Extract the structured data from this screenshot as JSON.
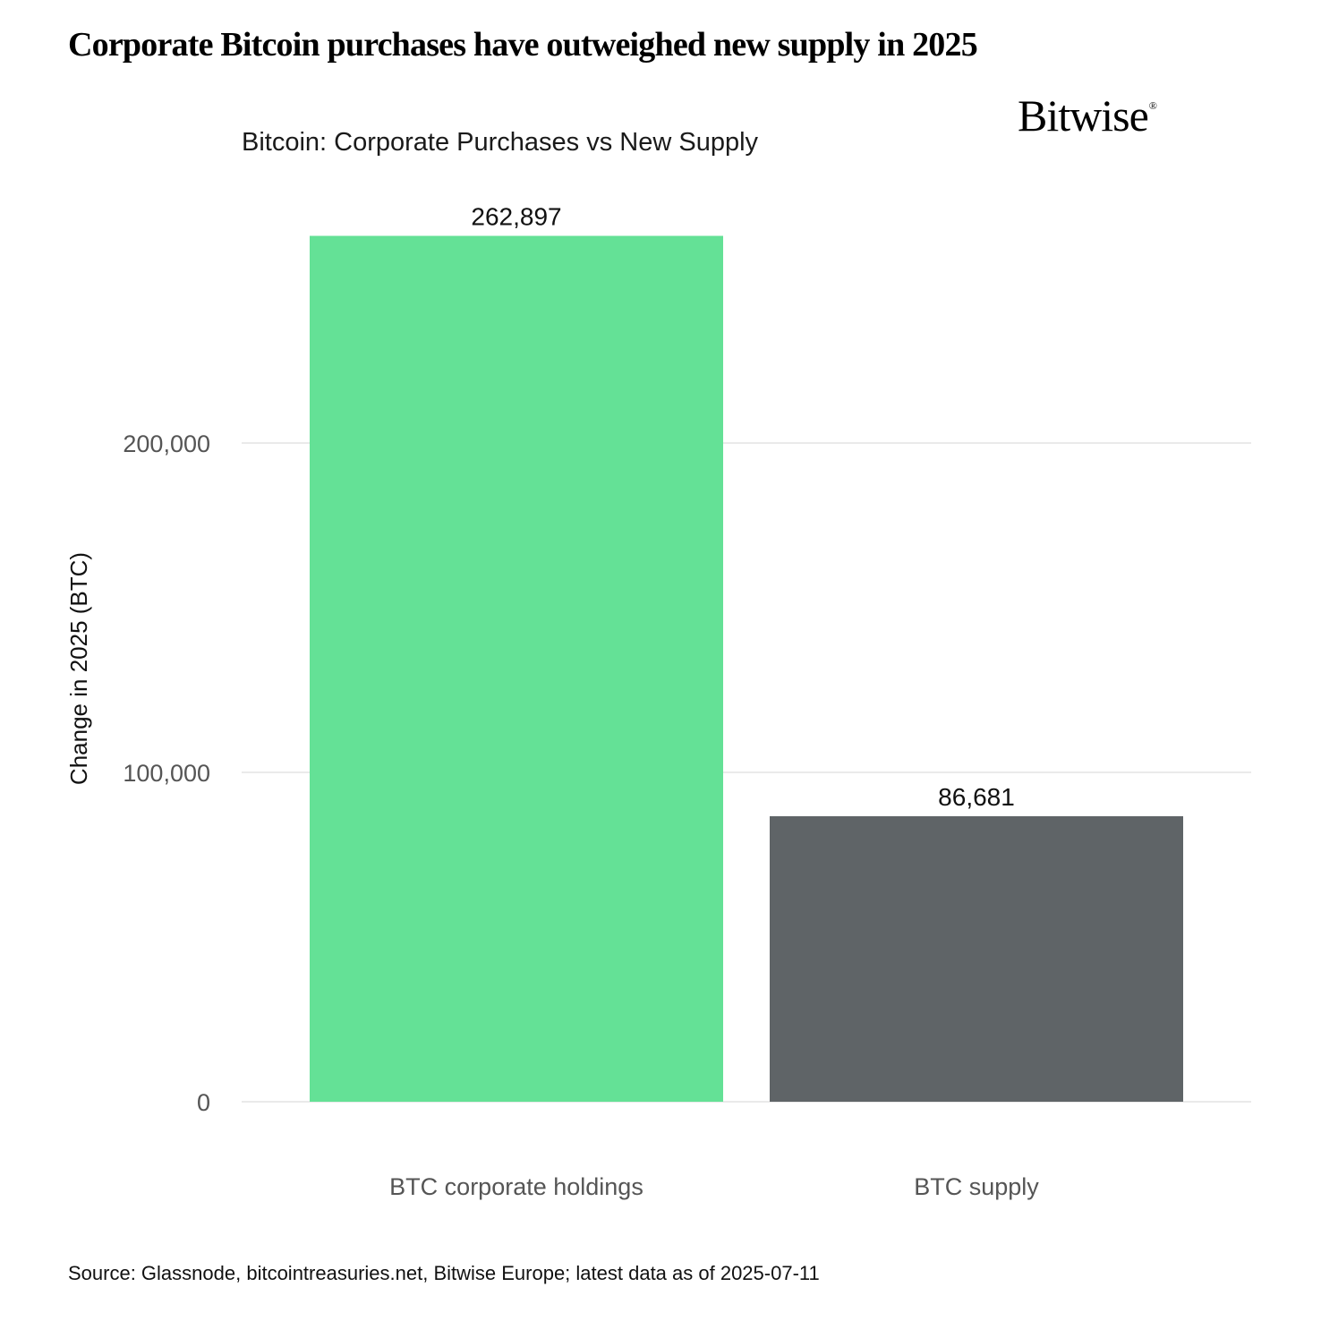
{
  "header": {
    "headline": "Corporate Bitcoin purchases have outweighed new supply in 2025",
    "brand": "Bitwise",
    "brand_mark": "®"
  },
  "footer": {
    "source": "Source: Glassnode, bitcointreasuries.net, Bitwise Europe; latest data as of 2025-07-11"
  },
  "chart_data": {
    "type": "bar",
    "title": "Bitcoin: Corporate Purchases vs New Supply",
    "xlabel": "",
    "ylabel": "Change in 2025 (BTC)",
    "categories": [
      "BTC corporate holdings",
      "BTC supply"
    ],
    "values": [
      262897,
      86681
    ],
    "value_labels": [
      "262,897",
      "86,681"
    ],
    "colors": [
      "#64e196",
      "#5f6467"
    ],
    "ylim": [
      0,
      270000
    ],
    "yticks": [
      0,
      100000,
      200000
    ],
    "ytick_labels": [
      "0",
      "100,000",
      "200,000"
    ],
    "grid": true,
    "legend": "none"
  }
}
